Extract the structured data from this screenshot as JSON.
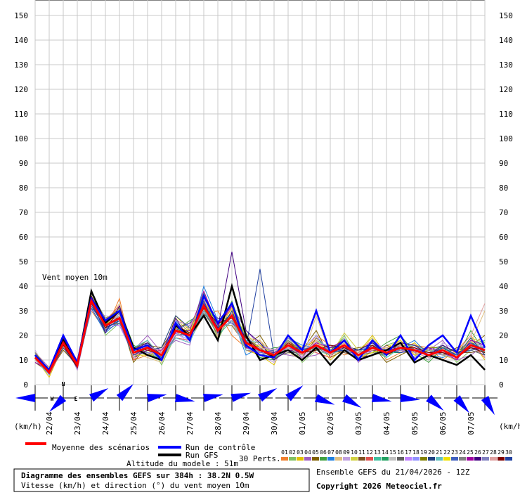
{
  "chart_data": {
    "type": "line",
    "annotation": "Vent moyen 10m",
    "y_unit_label": "(km/h)",
    "ylim": [
      0,
      150
    ],
    "yticks": [
      0,
      10,
      20,
      30,
      40,
      50,
      60,
      70,
      80,
      90,
      100,
      110,
      120,
      130,
      140,
      150
    ],
    "grid": true,
    "categories": [
      null,
      "22/04",
      null,
      "23/04",
      null,
      "24/04",
      null,
      "25/04",
      null,
      "26/04",
      null,
      "27/04",
      null,
      "28/04",
      null,
      "29/04",
      null,
      "30/04",
      null,
      "01/05",
      null,
      "02/05",
      null,
      "03/05",
      null,
      "04/05",
      null,
      "05/05",
      null,
      "06/05",
      null,
      "07/05",
      null
    ],
    "series": [
      {
        "name": "Moyenne des scénarios",
        "color": "#ff0000",
        "values": [
          11,
          5,
          17,
          8,
          34,
          24,
          27,
          13,
          15,
          12,
          22,
          20,
          32,
          22,
          28,
          17,
          14,
          12,
          16,
          13,
          16,
          13,
          16,
          12,
          15,
          13,
          15,
          14,
          12,
          14,
          11,
          16,
          14
        ]
      },
      {
        "name": "Run de contrôle",
        "color": "#0000ff",
        "values": [
          12,
          6,
          20,
          9,
          35,
          26,
          30,
          14,
          16,
          10,
          25,
          18,
          36,
          25,
          33,
          16,
          12,
          11,
          20,
          14,
          30,
          13,
          18,
          10,
          18,
          12,
          20,
          10,
          16,
          20,
          13,
          28,
          15
        ]
      },
      {
        "name": "Run GFS",
        "color": "#000000",
        "values": [
          12,
          5,
          18,
          8,
          38,
          25,
          30,
          15,
          12,
          10,
          24,
          20,
          28,
          18,
          40,
          20,
          10,
          12,
          14,
          10,
          15,
          8,
          14,
          10,
          12,
          14,
          17,
          9,
          12,
          10,
          8,
          12,
          6
        ]
      },
      {
        "name": "01",
        "color": "#f08030",
        "values": [
          12,
          4,
          15,
          9,
          30,
          22,
          35,
          10,
          12,
          14,
          25,
          18,
          28,
          30,
          20,
          15,
          18,
          10,
          14,
          12,
          20,
          16,
          12,
          14,
          18,
          10,
          13,
          16,
          15,
          10,
          14,
          20,
          12
        ]
      },
      {
        "name": "02",
        "color": "#80c060",
        "values": [
          10,
          6,
          19,
          7,
          36,
          20,
          25,
          15,
          18,
          8,
          20,
          24,
          35,
          18,
          30,
          20,
          10,
          14,
          18,
          9,
          14,
          12,
          20,
          10,
          12,
          16,
          18,
          12,
          10,
          16,
          9,
          14,
          18
        ]
      },
      {
        "name": "03",
        "color": "#e0c000",
        "values": [
          11,
          3,
          16,
          10,
          33,
          27,
          30,
          12,
          14,
          11,
          28,
          22,
          30,
          25,
          26,
          14,
          12,
          8,
          20,
          15,
          18,
          10,
          15,
          13,
          20,
          12,
          14,
          17,
          11,
          13,
          12,
          18,
          10
        ]
      },
      {
        "name": "04",
        "color": "#a060c0",
        "values": [
          13,
          7,
          18,
          6,
          32,
          25,
          24,
          14,
          20,
          13,
          18,
          16,
          38,
          20,
          32,
          22,
          16,
          13,
          12,
          11,
          12,
          15,
          18,
          9,
          14,
          14,
          16,
          11,
          14,
          18,
          10,
          12,
          16
        ]
      },
      {
        "name": "05",
        "color": "#806000",
        "values": [
          9,
          5,
          14,
          8,
          35,
          23,
          28,
          9,
          16,
          15,
          24,
          20,
          34,
          24,
          24,
          16,
          20,
          11,
          17,
          14,
          22,
          11,
          14,
          15,
          16,
          9,
          12,
          15,
          13,
          12,
          15,
          16,
          20
        ]
      },
      {
        "name": "06",
        "color": "#40a040",
        "values": [
          12,
          4,
          20,
          9,
          37,
          26,
          31,
          16,
          13,
          10,
          22,
          26,
          29,
          22,
          34,
          18,
          13,
          15,
          15,
          12,
          16,
          14,
          19,
          11,
          13,
          17,
          20,
          13,
          9,
          15,
          11,
          22,
          13
        ]
      },
      {
        "name": "07",
        "color": "#2080e0",
        "values": [
          10,
          6,
          17,
          7,
          31,
          21,
          26,
          11,
          17,
          12,
          26,
          19,
          40,
          26,
          28,
          12,
          15,
          10,
          19,
          16,
          15,
          13,
          17,
          12,
          17,
          11,
          15,
          18,
          12,
          11,
          13,
          14,
          15
        ]
      },
      {
        "name": "08",
        "color": "#e0c080",
        "values": [
          11,
          5,
          16,
          8,
          34,
          24,
          33,
          13,
          11,
          9,
          20,
          23,
          33,
          19,
          30,
          19,
          18,
          12,
          13,
          10,
          28,
          12,
          14,
          13,
          15,
          13,
          17,
          12,
          16,
          14,
          12,
          17,
          30
        ]
      },
      {
        "name": "09",
        "color": "#c0a0e0",
        "values": [
          14,
          4,
          18,
          10,
          30,
          28,
          27,
          15,
          15,
          14,
          21,
          17,
          31,
          23,
          25,
          15,
          12,
          9,
          16,
          14,
          17,
          16,
          15,
          10,
          14,
          15,
          13,
          14,
          10,
          17,
          14,
          15,
          12
        ]
      },
      {
        "name": "10",
        "color": "#d0d040",
        "values": [
          10,
          7,
          17,
          8,
          36,
          22,
          29,
          12,
          14,
          12,
          27,
          21,
          36,
          21,
          29,
          21,
          14,
          13,
          18,
          13,
          14,
          12,
          21,
          14,
          19,
          12,
          16,
          13,
          14,
          12,
          10,
          19,
          17
        ]
      },
      {
        "name": "11",
        "color": "#805020",
        "values": [
          12,
          5,
          19,
          7,
          33,
          24,
          25,
          14,
          18,
          10,
          23,
          25,
          28,
          27,
          27,
          16,
          16,
          11,
          15,
          11,
          19,
          14,
          13,
          11,
          12,
          16,
          14,
          16,
          12,
          16,
          13,
          13,
          14
        ]
      },
      {
        "name": "12",
        "color": "#e05050",
        "values": [
          11,
          4,
          15,
          9,
          35,
          26,
          32,
          10,
          16,
          13,
          19,
          18,
          34,
          24,
          31,
          14,
          13,
          14,
          17,
          15,
          13,
          11,
          18,
          12,
          16,
          14,
          18,
          12,
          15,
          13,
          11,
          17,
          11
        ]
      },
      {
        "name": "13",
        "color": "#40c0a0",
        "values": [
          9,
          6,
          18,
          8,
          32,
          23,
          28,
          14,
          12,
          11,
          25,
          20,
          30,
          20,
          26,
          18,
          17,
          12,
          14,
          12,
          18,
          15,
          16,
          13,
          14,
          11,
          15,
          15,
          11,
          15,
          12,
          16,
          18
        ]
      },
      {
        "name": "14",
        "color": "#20a060",
        "values": [
          13,
          5,
          16,
          10,
          34,
          25,
          26,
          13,
          15,
          12,
          22,
          22,
          37,
          23,
          28,
          17,
          11,
          10,
          16,
          14,
          15,
          13,
          14,
          14,
          17,
          13,
          13,
          14,
          13,
          14,
          14,
          15,
          13
        ]
      },
      {
        "name": "15",
        "color": "#c0c0c0",
        "values": [
          12,
          4,
          17,
          8,
          38,
          21,
          30,
          11,
          14,
          14,
          24,
          19,
          32,
          25,
          27,
          20,
          15,
          13,
          19,
          12,
          17,
          12,
          19,
          10,
          15,
          15,
          16,
          13,
          12,
          13,
          11,
          18,
          15
        ]
      },
      {
        "name": "16",
        "color": "#606060",
        "values": [
          10,
          6,
          20,
          7,
          31,
          27,
          27,
          15,
          17,
          10,
          20,
          21,
          29,
          22,
          33,
          15,
          14,
          11,
          13,
          13,
          14,
          16,
          15,
          12,
          13,
          12,
          17,
          16,
          14,
          16,
          13,
          14,
          12
        ]
      },
      {
        "name": "17",
        "color": "#c080ff",
        "values": [
          11,
          5,
          16,
          9,
          35,
          24,
          24,
          12,
          13,
          13,
          26,
          24,
          33,
          21,
          28,
          17,
          16,
          14,
          17,
          11,
          16,
          12,
          17,
          13,
          18,
          14,
          14,
          12,
          13,
          12,
          12,
          16,
          16
        ]
      },
      {
        "name": "18",
        "color": "#9090ff",
        "values": [
          12,
          4,
          18,
          8,
          33,
          22,
          29,
          14,
          16,
          11,
          21,
          18,
          35,
          26,
          26,
          16,
          13,
          12,
          15,
          14,
          20,
          13,
          14,
          11,
          16,
          13,
          15,
          15,
          11,
          14,
          10,
          17,
          14
        ]
      },
      {
        "name": "19",
        "color": "#808000",
        "values": [
          13,
          6,
          17,
          10,
          36,
          26,
          31,
          13,
          15,
          12,
          23,
          20,
          31,
          20,
          30,
          19,
          15,
          10,
          18,
          13,
          15,
          14,
          18,
          12,
          14,
          12,
          16,
          13,
          15,
          15,
          14,
          15,
          13
        ]
      },
      {
        "name": "20",
        "color": "#204080",
        "values": [
          11,
          5,
          15,
          7,
          32,
          23,
          26,
          11,
          14,
          15,
          28,
          23,
          34,
          23,
          29,
          18,
          12,
          13,
          16,
          12,
          17,
          15,
          16,
          14,
          15,
          14,
          13,
          14,
          12,
          13,
          12,
          19,
          12
        ]
      },
      {
        "name": "21",
        "color": "#60c0c0",
        "values": [
          10,
          4,
          19,
          9,
          34,
          25,
          28,
          15,
          18,
          11,
          19,
          17,
          30,
          24,
          27,
          14,
          14,
          11,
          14,
          15,
          14,
          12,
          15,
          13,
          17,
          11,
          15,
          16,
          13,
          16,
          11,
          15,
          17
        ]
      },
      {
        "name": "22",
        "color": "#f0e000",
        "values": [
          12,
          6,
          16,
          8,
          35,
          24,
          30,
          12,
          12,
          12,
          24,
          21,
          36,
          22,
          31,
          16,
          16,
          12,
          17,
          12,
          18,
          13,
          17,
          11,
          13,
          15,
          18,
          12,
          14,
          12,
          13,
          16,
          14
        ]
      },
      {
        "name": "23",
        "color": "#4060c0",
        "values": [
          11,
          5,
          18,
          8,
          31,
          22,
          25,
          14,
          16,
          13,
          22,
          25,
          32,
          27,
          25,
          20,
          13,
          14,
          15,
          13,
          16,
          14,
          14,
          12,
          16,
          13,
          14,
          15,
          12,
          14,
          12,
          14,
          15
        ]
      },
      {
        "name": "24",
        "color": "#808080",
        "values": [
          13,
          4,
          17,
          10,
          37,
          27,
          29,
          13,
          15,
          10,
          25,
          19,
          29,
          21,
          28,
          17,
          15,
          11,
          18,
          14,
          15,
          12,
          16,
          13,
          15,
          12,
          16,
          14,
          13,
          15,
          14,
          17,
          13
        ]
      },
      {
        "name": "25",
        "color": "#a000a0",
        "values": [
          9,
          6,
          16,
          7,
          33,
          24,
          27,
          12,
          14,
          14,
          21,
          22,
          38,
          24,
          32,
          15,
          14,
          13,
          16,
          12,
          17,
          15,
          18,
          12,
          14,
          14,
          15,
          13,
          15,
          13,
          10,
          18,
          16
        ]
      },
      {
        "name": "26",
        "color": "#400080",
        "values": [
          12,
          5,
          19,
          9,
          34,
          21,
          32,
          14,
          17,
          12,
          27,
          18,
          33,
          23,
          54,
          22,
          17,
          10,
          14,
          13,
          16,
          13,
          15,
          14,
          17,
          12,
          17,
          16,
          12,
          16,
          13,
          15,
          14
        ]
      },
      {
        "name": "27",
        "color": "#8080c0",
        "values": [
          11,
          4,
          17,
          8,
          32,
          26,
          26,
          13,
          13,
          11,
          20,
          20,
          30,
          22,
          26,
          18,
          13,
          12,
          19,
          14,
          15,
          14,
          16,
          11,
          15,
          13,
          14,
          14,
          14,
          12,
          12,
          16,
          15
        ]
      },
      {
        "name": "28",
        "color": "#e0a0a0",
        "values": [
          10,
          5,
          18,
          10,
          35,
          25,
          28,
          11,
          16,
          13,
          23,
          23,
          35,
          20,
          29,
          16,
          15,
          14,
          15,
          12,
          18,
          12,
          17,
          13,
          14,
          15,
          16,
          13,
          11,
          14,
          13,
          20,
          33
        ]
      },
      {
        "name": "29",
        "color": "#800000",
        "values": [
          12,
          6,
          16,
          7,
          36,
          23,
          30,
          15,
          14,
          12,
          24,
          21,
          31,
          25,
          27,
          19,
          14,
          11,
          17,
          13,
          14,
          16,
          15,
          12,
          16,
          12,
          15,
          15,
          13,
          13,
          11,
          15,
          13
        ]
      },
      {
        "name": "30",
        "color": "#2040a0",
        "values": [
          11,
          5,
          17,
          9,
          33,
          22,
          27,
          12,
          15,
          11,
          22,
          19,
          34,
          21,
          30,
          15,
          47,
          12,
          16,
          14,
          16,
          13,
          14,
          14,
          15,
          14,
          13,
          14,
          12,
          15,
          12,
          17,
          14
        ]
      }
    ],
    "perturbations_label": "30 Perts.",
    "wind_directions": [
      270,
      225,
      60,
      45,
      80,
      100,
      80,
      75,
      60,
      50,
      110,
      120,
      100,
      95,
      130,
      140,
      150
    ],
    "compass_labels": [
      "N",
      "W",
      "E"
    ],
    "altitude": "Altitude du modele : 51m",
    "title": "Diagramme des ensembles GEFS sur 384h : 38.2N 0.5W",
    "subtitle": "Vitesse (km/h) et direction (°) du vent moyen 10m",
    "run_info": "Ensemble GEFS du 21/04/2026 - 12Z",
    "copyright": "Copyright 2026 Meteociel.fr"
  }
}
